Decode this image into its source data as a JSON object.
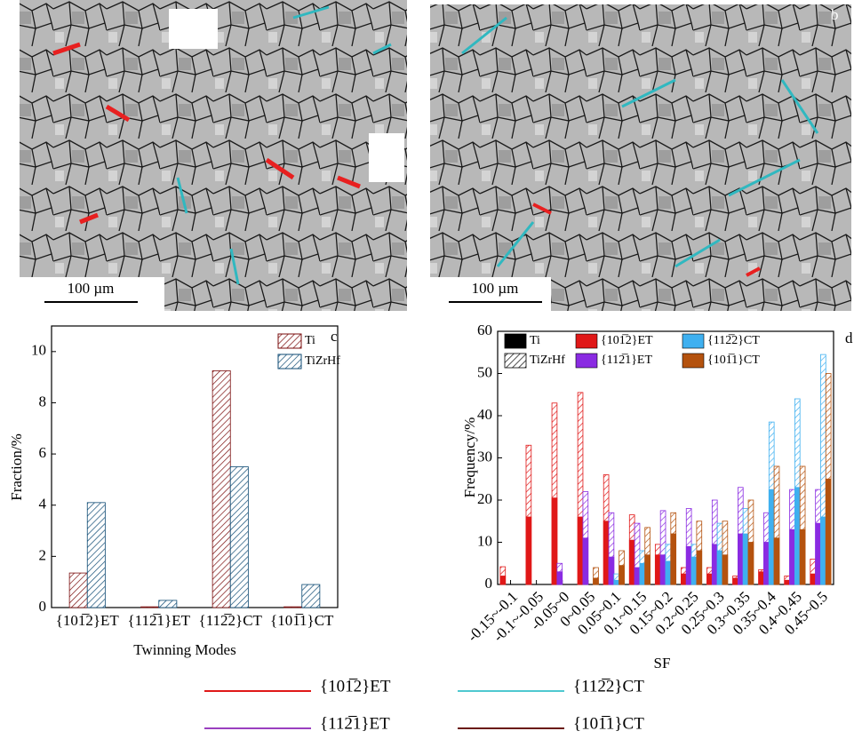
{
  "images": [
    {
      "scale_bar": "100 µm"
    },
    {
      "panel_label": "b",
      "scale_bar": "100 µm"
    }
  ],
  "chart_data": [
    {
      "type": "bar",
      "panel_label": "c",
      "x_label": "Twinning Modes",
      "y_label": "Fraction/%",
      "categories": [
        "{101̅2}ET",
        "{112̅1}ET",
        "{112̅2}CT",
        "{101̅1}CT"
      ],
      "series": [
        {
          "name": "Ti",
          "color": "#7a0c0c",
          "hatch": true,
          "values": [
            1.35,
            0.03,
            9.25,
            0.03
          ]
        },
        {
          "name": "TiZrHf",
          "color": "#0d4a73",
          "hatch": true,
          "values": [
            4.1,
            0.28,
            5.5,
            0.9
          ]
        }
      ],
      "ylim": [
        0,
        11
      ],
      "yticks": [
        0,
        2,
        4,
        6,
        8,
        10
      ]
    },
    {
      "type": "bar",
      "panel_label": "d",
      "x_label": "SF",
      "y_label": "Frequency/%",
      "categories": [
        "-0.15~-0.1",
        "-0.1~-0.05",
        "-0.05~0",
        "0~0.05",
        "0.05~0.1",
        "0.1~0.15",
        "0.15~0.2",
        "0.2~0.25",
        "0.25~0.3",
        "0.3~0.35",
        "0.35~0.4",
        "0.4~0.45",
        "0.45~0.5"
      ],
      "alloys": [
        {
          "name": "Ti",
          "color": "#000000"
        },
        {
          "name": "TiZrHf",
          "hatch": true
        }
      ],
      "series": [
        {
          "name": "{101̅2}ET",
          "color": "#e01818",
          "values": [
            2,
            16,
            20.5,
            16,
            15,
            10.5,
            7,
            2.5,
            2.5,
            1.5,
            3,
            1,
            2.5
          ],
          "hatched_values": [
            4.2,
            33,
            43,
            45.5,
            26,
            16.5,
            9.5,
            4,
            4,
            2,
            3.5,
            2,
            6
          ]
        },
        {
          "name": "{112̅1}ET",
          "color": "#8a2be2",
          "values": [
            0,
            0,
            3,
            11,
            6.5,
            4,
            7,
            9,
            9.5,
            12,
            10,
            13,
            14.5
          ],
          "hatched_values": [
            0,
            0,
            5,
            22,
            17,
            14.5,
            17.5,
            18,
            20,
            23,
            17,
            22.5,
            22.5
          ]
        },
        {
          "name": "{112̅2}CT",
          "color": "#3fb0f0",
          "values": [
            0,
            0,
            0,
            0,
            1,
            5,
            5.5,
            6.5,
            8,
            12,
            22.5,
            23,
            16
          ],
          "hatched_values": [
            0,
            0,
            0,
            0,
            2.5,
            8,
            9.5,
            9.5,
            14.5,
            18,
            38.5,
            44,
            54.5
          ]
        },
        {
          "name": "{101̅1}CT",
          "color": "#b4520e",
          "values": [
            0,
            0,
            0,
            1.5,
            4.5,
            7,
            12,
            8,
            7,
            10,
            11,
            13,
            25
          ],
          "hatched_values": [
            0,
            0,
            0,
            4,
            8,
            13.5,
            17,
            15,
            15,
            20,
            28,
            28,
            50
          ]
        }
      ],
      "ylim": [
        0,
        60
      ],
      "yticks": [
        0,
        10,
        20,
        30,
        40,
        50,
        60
      ]
    }
  ],
  "map_legend": [
    {
      "label": "{101̅2}ET",
      "color": "#e01818"
    },
    {
      "label": "{112̅2}CT",
      "color": "#4fc8d0"
    },
    {
      "label": "{112̅1}ET",
      "color": "#9a3fc0"
    },
    {
      "label": "{101̅1}CT",
      "color": "#6a1a10"
    }
  ]
}
